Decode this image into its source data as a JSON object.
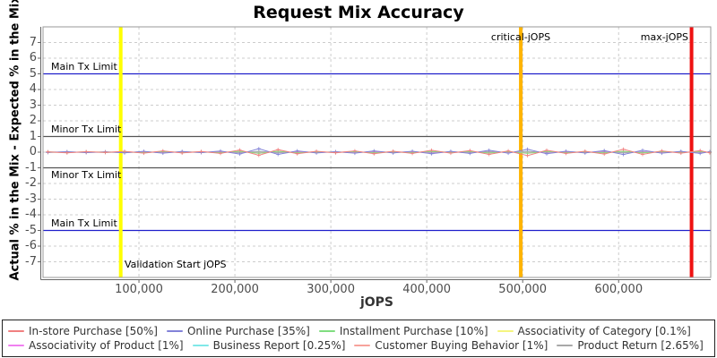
{
  "title": "Request Mix Accuracy",
  "chart_data": {
    "type": "line",
    "title": "Request Mix Accuracy",
    "xlabel": "jOPS",
    "ylabel": "Actual % in the Mix - Expected % in the Mix",
    "xlim": [
      0,
      696000
    ],
    "ylim": [
      -8,
      8
    ],
    "grid": true,
    "grid_color": "#cccccc",
    "legend_position": "bottom",
    "x_ticks": [
      {
        "value": 100000,
        "label": "100,000"
      },
      {
        "value": 200000,
        "label": "200,000"
      },
      {
        "value": 300000,
        "label": "300,000"
      },
      {
        "value": 400000,
        "label": "400,000"
      },
      {
        "value": 500000,
        "label": "500,000"
      },
      {
        "value": 600000,
        "label": "600,000"
      }
    ],
    "y_ticks": [
      -7,
      -6,
      -5,
      -4,
      -3,
      -2,
      -1,
      0,
      1,
      2,
      3,
      4,
      5,
      6,
      7
    ],
    "x": [
      5000,
      25000,
      45000,
      65000,
      85000,
      105000,
      125000,
      145000,
      165000,
      185000,
      205000,
      225000,
      245000,
      265000,
      285000,
      305000,
      325000,
      345000,
      365000,
      385000,
      405000,
      425000,
      445000,
      465000,
      485000,
      505000,
      525000,
      545000,
      565000,
      585000,
      605000,
      625000,
      645000,
      665000,
      685000,
      695000
    ],
    "series": [
      {
        "id": "instore",
        "label": "In-store Purchase [50%]",
        "color": "#f08080",
        "values": [
          0.02,
          -0.04,
          0.03,
          -0.02,
          0.05,
          -0.06,
          0.08,
          -0.05,
          0.04,
          -0.08,
          0.14,
          -0.2,
          0.16,
          -0.1,
          0.06,
          -0.04,
          0.08,
          -0.1,
          0.06,
          -0.08,
          0.12,
          -0.06,
          0.1,
          -0.14,
          0.08,
          -0.22,
          0.12,
          -0.08,
          0.06,
          -0.12,
          0.18,
          -0.14,
          0.08,
          -0.06,
          0.1,
          -0.04
        ]
      },
      {
        "id": "online",
        "label": "Online Purchase [35%]",
        "color": "#8282d8",
        "values": [
          -0.02,
          0.03,
          -0.03,
          0.02,
          -0.04,
          0.05,
          -0.06,
          0.04,
          -0.03,
          0.07,
          -0.12,
          0.22,
          -0.14,
          0.08,
          -0.05,
          0.03,
          -0.06,
          0.08,
          -0.05,
          0.06,
          -0.1,
          0.05,
          -0.08,
          0.12,
          -0.06,
          0.18,
          -0.1,
          0.06,
          -0.05,
          0.1,
          -0.15,
          0.12,
          -0.06,
          0.05,
          -0.08,
          0.03
        ]
      },
      {
        "id": "installment",
        "label": "Installment Purchase [10%]",
        "color": "#80dd80",
        "values": [
          0.01,
          -0.02,
          0.02,
          -0.01,
          0.02,
          -0.03,
          0.03,
          -0.02,
          0.02,
          -0.03,
          0.05,
          -0.07,
          0.05,
          -0.04,
          0.02,
          -0.02,
          0.03,
          -0.04,
          0.02,
          -0.03,
          0.04,
          -0.02,
          0.03,
          -0.05,
          0.03,
          -0.07,
          0.04,
          -0.03,
          0.02,
          -0.04,
          0.05,
          -0.04,
          0.03,
          -0.02,
          0.03,
          -0.02
        ]
      },
      {
        "id": "assoc_category",
        "label": "Associativity of Category [0.1%]",
        "color": "#f5f580",
        "values": [
          0,
          -0.01,
          0.01,
          0,
          -0.01,
          0.01,
          -0.01,
          0.01,
          0,
          -0.01,
          0.01,
          -0.02,
          0.01,
          -0.01,
          0.01,
          0,
          -0.01,
          0.01,
          0,
          -0.01,
          0.01,
          0,
          -0.01,
          0.01,
          0,
          -0.02,
          0.01,
          -0.01,
          0.01,
          -0.01,
          0.01,
          -0.01,
          0.01,
          0,
          -0.01,
          0
        ]
      },
      {
        "id": "assoc_product",
        "label": "Associativity of Product [1%]",
        "color": "#f080f0",
        "values": [
          0.01,
          -0.01,
          0.01,
          -0.01,
          0.02,
          -0.02,
          0.02,
          -0.01,
          0.01,
          -0.02,
          0.03,
          -0.04,
          0.03,
          -0.02,
          0.01,
          -0.01,
          0.02,
          -0.02,
          0.01,
          -0.02,
          0.02,
          -0.01,
          0.02,
          -0.03,
          0.02,
          -0.04,
          0.02,
          -0.02,
          0.01,
          -0.02,
          0.03,
          -0.02,
          0.02,
          -0.01,
          0.02,
          -0.01
        ]
      },
      {
        "id": "business_report",
        "label": "Business Report [0.25%]",
        "color": "#80e8e8",
        "values": [
          -0.01,
          0.01,
          -0.01,
          0.01,
          -0.02,
          0.02,
          -0.02,
          0.01,
          -0.01,
          0.02,
          -0.03,
          0.04,
          -0.03,
          0.02,
          -0.01,
          0.01,
          -0.02,
          0.02,
          -0.01,
          0.02,
          -0.02,
          0.01,
          -0.02,
          0.03,
          -0.02,
          0.04,
          -0.02,
          0.02,
          -0.01,
          0.02,
          -0.03,
          0.02,
          -0.02,
          0.01,
          -0.02,
          0.01
        ]
      },
      {
        "id": "customer_buying",
        "label": "Customer Buying Behavior [1%]",
        "color": "#f7a29b",
        "values": [
          0.02,
          -0.02,
          0.02,
          -0.02,
          0.03,
          -0.03,
          0.04,
          -0.03,
          0.02,
          -0.03,
          0.05,
          -0.06,
          0.05,
          -0.03,
          0.02,
          -0.02,
          0.03,
          -0.04,
          0.03,
          -0.03,
          0.04,
          -0.03,
          0.04,
          -0.05,
          0.03,
          -0.06,
          0.04,
          -0.03,
          0.02,
          -0.04,
          0.05,
          -0.04,
          0.03,
          -0.02,
          0.04,
          -0.02
        ]
      },
      {
        "id": "product_return",
        "label": "Product Return [2.65%]",
        "color": "#a8a8a8",
        "values": [
          -0.02,
          0.02,
          -0.02,
          0.02,
          -0.03,
          0.03,
          -0.03,
          0.02,
          -0.02,
          0.03,
          -0.04,
          0.05,
          -0.04,
          0.03,
          -0.02,
          0.02,
          -0.03,
          0.03,
          -0.02,
          0.03,
          -0.04,
          0.02,
          -0.03,
          0.04,
          -0.03,
          0.05,
          -0.03,
          0.03,
          -0.02,
          0.03,
          -0.04,
          0.03,
          -0.03,
          0.02,
          -0.03,
          0.02
        ]
      }
    ],
    "annotations": {
      "main_tx_limit": {
        "label": "Main Tx Limit",
        "values": [
          5,
          -5
        ],
        "color": "#2020cc"
      },
      "minor_tx_limit": {
        "label": "Minor Tx Limit",
        "values": [
          1,
          -1
        ],
        "color": "#555555"
      },
      "validation_start": {
        "label": "Validation Start jOPS",
        "x": 81000,
        "color": "#ffff00"
      },
      "critical_jops": {
        "label": "critical-jOPS",
        "x": 498000,
        "color": "#ffb400"
      },
      "max_jops": {
        "label": "max-jOPS",
        "x": 676000,
        "color": "#ee1111"
      }
    }
  }
}
